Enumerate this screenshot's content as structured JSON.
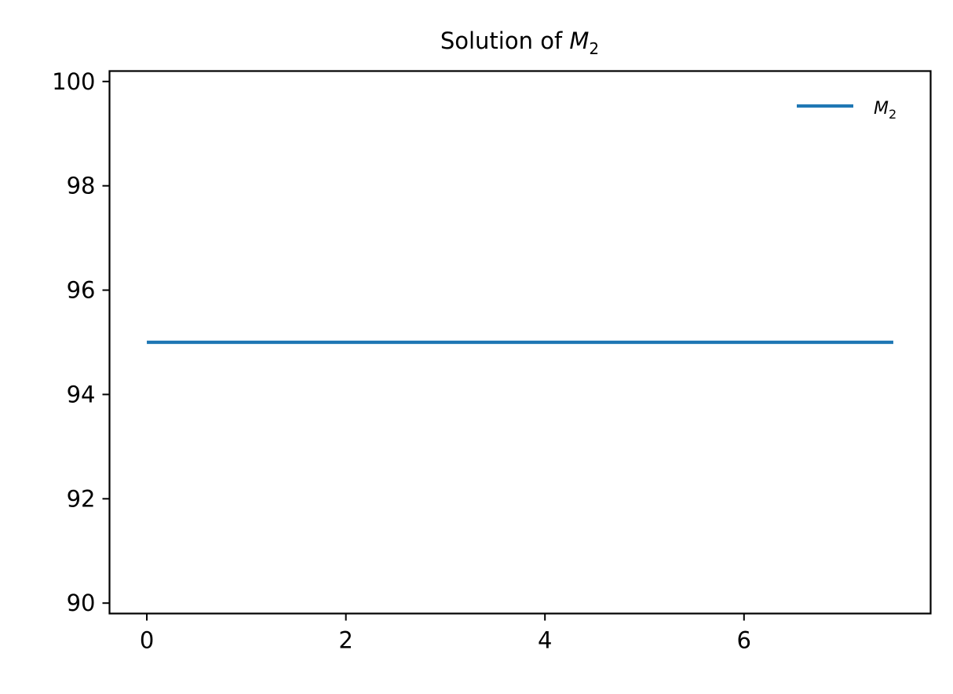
{
  "chart_data": {
    "type": "line",
    "title_prefix": "Solution of ",
    "title_math": "M",
    "title_math_sub": "2",
    "xlabel": "",
    "ylabel": "",
    "xlim": [
      -0.375,
      7.875
    ],
    "ylim": [
      89.8,
      100.2
    ],
    "xticks": [
      0,
      2,
      4,
      6
    ],
    "yticks": [
      90,
      92,
      94,
      96,
      98,
      100
    ],
    "grid": false,
    "legend_position": "top-right",
    "series": [
      {
        "name_math": "M",
        "name_sub": "2",
        "color": "#1f77b4",
        "x": [
          0,
          7.5
        ],
        "y": [
          95,
          95
        ]
      }
    ]
  }
}
